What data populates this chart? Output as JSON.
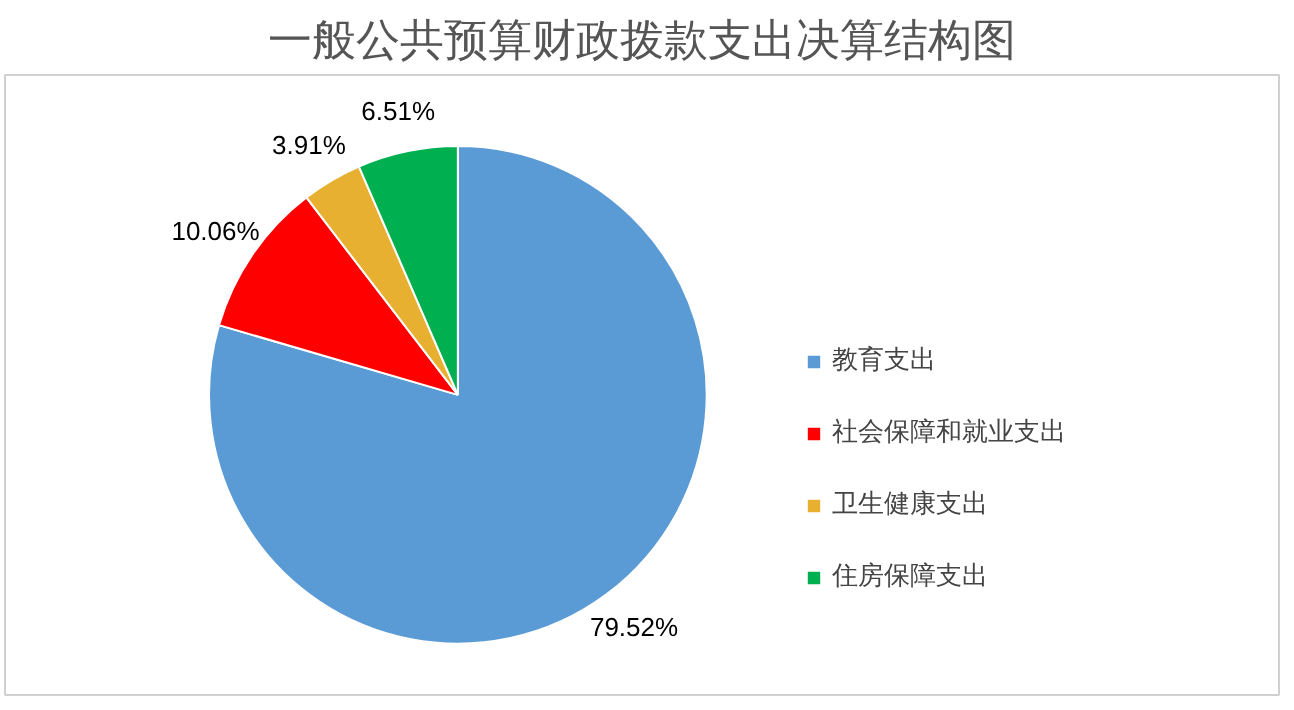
{
  "chart_data": {
    "type": "pie",
    "title": "一般公共预算财政拨款支出决算结构图",
    "categories": [
      "教育支出",
      "社会保障和就业支出",
      "卫生健康支出",
      "住房保障支出"
    ],
    "values": [
      79.52,
      10.06,
      3.91,
      6.51
    ],
    "colors": [
      "#5b9bd5",
      "#ff0000",
      "#e8b030",
      "#00b050"
    ],
    "value_labels": [
      "79.52%",
      "10.06%",
      "3.91%",
      "6.51%"
    ],
    "legend": "right"
  }
}
